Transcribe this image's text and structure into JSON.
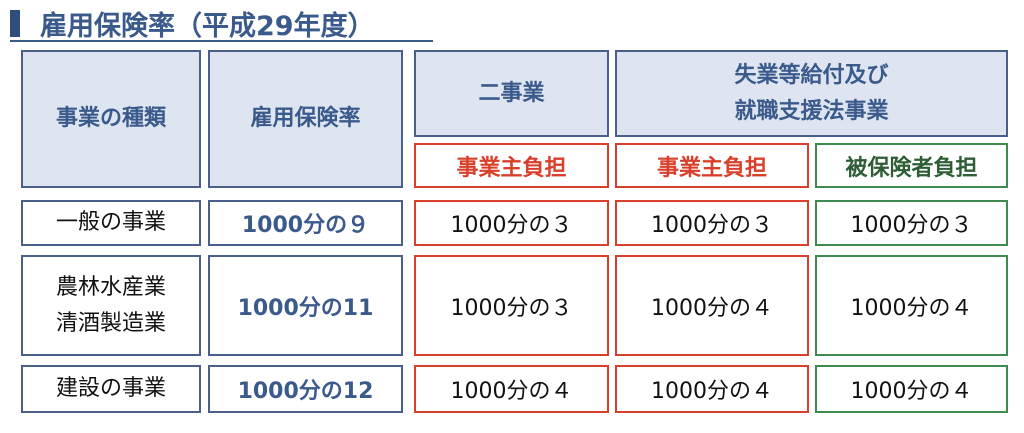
{
  "title": "雇用保険率（平成29年度）",
  "headers": {
    "kind": "事業の種類",
    "rate": "雇用保険率",
    "ni_jigyo": "二事業",
    "shitsugyo_line1": "失業等給付及び",
    "shitsugyo_line2": "就職支援法事業",
    "employer1": "事業主負担",
    "employer2": "事業主負担",
    "insured": "被保険者負担"
  },
  "rows": [
    {
      "kind": [
        "一般の事業"
      ],
      "rate": "1000分の９",
      "ni_jigyo": "1000分の３",
      "employer": "1000分の３",
      "insured": "1000分の３"
    },
    {
      "kind": [
        "農林水産業",
        "清酒製造業"
      ],
      "rate": "1000分の11",
      "ni_jigyo": "1000分の３",
      "employer": "1000分の４",
      "insured": "1000分の４"
    },
    {
      "kind": [
        "建設の事業"
      ],
      "rate": "1000分の12",
      "ni_jigyo": "1000分の４",
      "employer": "1000分の４",
      "insured": "1000分の４"
    }
  ],
  "colors": {
    "blue": "#3b5a8c",
    "header_fill": "#dfe5f0",
    "red": "#d9402b",
    "green": "#3e8a4f"
  }
}
